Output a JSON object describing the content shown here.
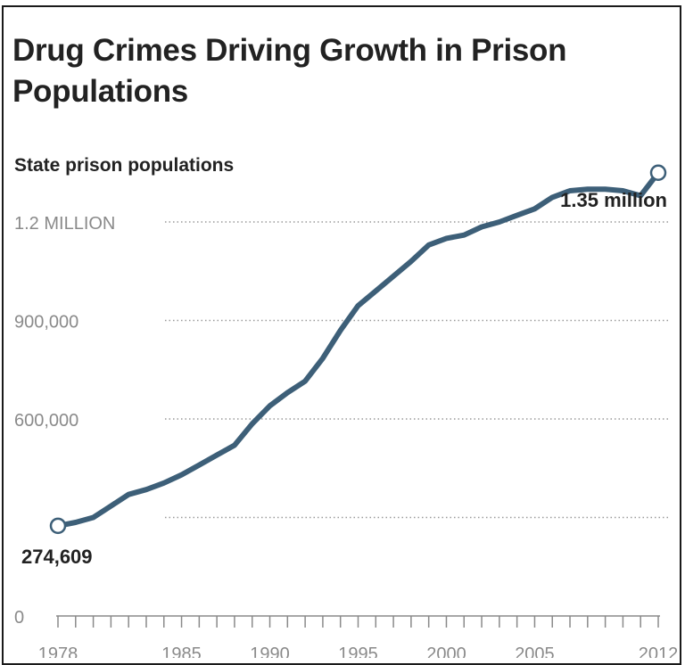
{
  "chart_data": {
    "type": "line",
    "title": "Drug Crimes Driving Growth in Prison Populations",
    "subtitle": "State prison populations",
    "xlabel": "",
    "ylabel": "",
    "xlim": [
      1978,
      2012
    ],
    "ylim": [
      0,
      1400000
    ],
    "grid": true,
    "y_ticks": [
      {
        "value": 0,
        "label": "0"
      },
      {
        "value": 300000,
        "label": ""
      },
      {
        "value": 600000,
        "label": "600,000"
      },
      {
        "value": 900000,
        "label": "900,000"
      },
      {
        "value": 1200000,
        "label": "1.2 MILLION"
      }
    ],
    "x_tick_labels": [
      {
        "value": 1978,
        "label": "1978"
      },
      {
        "value": 1985,
        "label": "1985"
      },
      {
        "value": 1990,
        "label": "1990"
      },
      {
        "value": 1995,
        "label": "1995"
      },
      {
        "value": 2000,
        "label": "2000"
      },
      {
        "value": 2005,
        "label": "2005"
      },
      {
        "value": 2012,
        "label": "2012"
      }
    ],
    "series": [
      {
        "name": "",
        "color": "#3d5f78",
        "x": [
          1978,
          1979,
          1980,
          1981,
          1982,
          1983,
          1984,
          1985,
          1986,
          1987,
          1988,
          1989,
          1990,
          1991,
          1992,
          1993,
          1994,
          1995,
          1996,
          1997,
          1998,
          1999,
          2000,
          2001,
          2002,
          2003,
          2004,
          2005,
          2006,
          2007,
          2008,
          2009,
          2010,
          2011,
          2012
        ],
        "values": [
          274609,
          285000,
          300000,
          335000,
          370000,
          385000,
          405000,
          430000,
          460000,
          490000,
          520000,
          585000,
          640000,
          680000,
          715000,
          785000,
          870000,
          945000,
          990000,
          1035000,
          1080000,
          1130000,
          1150000,
          1160000,
          1185000,
          1200000,
          1220000,
          1240000,
          1275000,
          1295000,
          1300000,
          1300000,
          1295000,
          1280000,
          1350000
        ]
      }
    ],
    "annotations": [
      {
        "x": 1978,
        "y": 274609,
        "label": "274,609"
      },
      {
        "x": 2012,
        "y": 1350000,
        "label": "1.35 million"
      }
    ]
  }
}
